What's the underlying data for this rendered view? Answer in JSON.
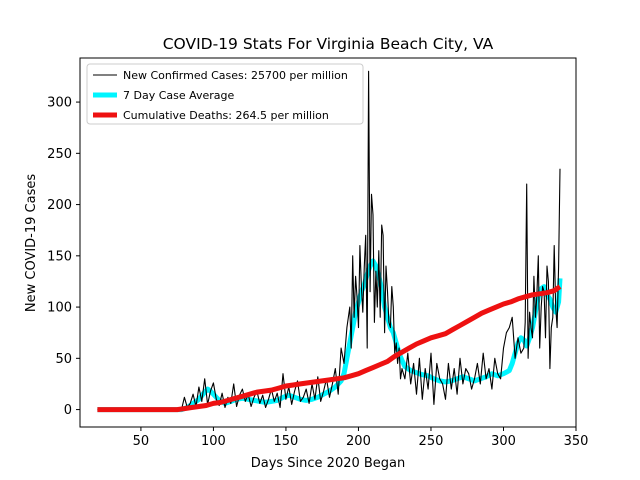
{
  "chart_data": {
    "type": "line",
    "title": "COVID-19 Stats For Virginia Beach City, VA",
    "xlabel": "Days Since 2020 Began",
    "ylabel": "New COVID-19 Cases",
    "xlim": [
      8,
      350
    ],
    "ylim": [
      -17,
      343
    ],
    "xticks": [
      50,
      100,
      150,
      200,
      250,
      300,
      350
    ],
    "yticks": [
      0,
      50,
      100,
      150,
      200,
      250,
      300
    ],
    "grid": false,
    "legend_position": "top-left",
    "series": [
      {
        "name": "New Confirmed Cases: 25700 per million",
        "color": "#000000",
        "style": "thin-line",
        "x": [
          20,
          30,
          40,
          50,
          60,
          70,
          78,
          80,
          82,
          84,
          86,
          88,
          90,
          92,
          94,
          96,
          98,
          100,
          102,
          104,
          106,
          108,
          110,
          112,
          114,
          116,
          118,
          120,
          122,
          124,
          126,
          128,
          130,
          132,
          134,
          136,
          138,
          140,
          142,
          144,
          146,
          148,
          150,
          152,
          154,
          156,
          158,
          160,
          162,
          164,
          166,
          168,
          170,
          172,
          174,
          176,
          178,
          180,
          182,
          184,
          186,
          188,
          190,
          192,
          194,
          195,
          196,
          197,
          198,
          199,
          200,
          201,
          202,
          203,
          204,
          205,
          206,
          207,
          208,
          209,
          210,
          211,
          212,
          213,
          214,
          215,
          216,
          217,
          218,
          219,
          220,
          221,
          222,
          223,
          224,
          225,
          226,
          227,
          228,
          229,
          230,
          232,
          234,
          236,
          238,
          240,
          242,
          244,
          246,
          248,
          250,
          252,
          254,
          256,
          258,
          260,
          262,
          264,
          266,
          268,
          270,
          272,
          274,
          276,
          278,
          280,
          282,
          284,
          286,
          288,
          290,
          292,
          294,
          296,
          298,
          300,
          302,
          304,
          306,
          308,
          310,
          312,
          314,
          315,
          316,
          317,
          318,
          319,
          320,
          321,
          322,
          323,
          324,
          325,
          326,
          327,
          328,
          329,
          330,
          331,
          332,
          333,
          334,
          335,
          336,
          337,
          338,
          339
        ],
        "y": [
          0,
          0,
          0,
          0,
          0,
          0,
          0,
          12,
          2,
          6,
          15,
          3,
          22,
          8,
          30,
          5,
          18,
          26,
          10,
          4,
          16,
          2,
          12,
          6,
          25,
          3,
          14,
          20,
          8,
          15,
          3,
          12,
          18,
          6,
          14,
          2,
          10,
          20,
          8,
          16,
          2,
          35,
          10,
          22,
          5,
          18,
          28,
          8,
          12,
          20,
          6,
          25,
          10,
          32,
          8,
          18,
          30,
          12,
          25,
          40,
          15,
          60,
          45,
          80,
          100,
          60,
          150,
          90,
          130,
          110,
          80,
          160,
          120,
          95,
          140,
          170,
          60,
          330,
          115,
          210,
          190,
          85,
          135,
          100,
          155,
          90,
          180,
          170,
          75,
          140,
          115,
          85,
          80,
          120,
          100,
          55,
          65,
          45,
          60,
          30,
          40,
          30,
          55,
          25,
          45,
          15,
          50,
          10,
          40,
          20,
          55,
          5,
          45,
          30,
          25,
          10,
          45,
          20,
          40,
          15,
          50,
          25,
          40,
          35,
          20,
          30,
          45,
          25,
          55,
          30,
          40,
          20,
          50,
          35,
          30,
          60,
          75,
          80,
          90,
          50,
          70,
          55,
          60,
          85,
          220,
          50,
          95,
          80,
          70,
          130,
          90,
          110,
          150,
          60,
          100,
          120,
          115,
          70,
          140,
          125,
          40,
          80,
          90,
          160,
          100,
          80,
          140,
          235
        ]
      },
      {
        "name": "7 Day Case Average",
        "color": "#00f5ff",
        "style": "thick-line",
        "x": [
          20,
          30,
          40,
          50,
          60,
          70,
          78,
          82,
          86,
          90,
          94,
          96,
          98,
          100,
          104,
          108,
          112,
          116,
          120,
          124,
          128,
          132,
          136,
          140,
          144,
          148,
          152,
          156,
          160,
          164,
          168,
          172,
          176,
          180,
          184,
          188,
          190,
          192,
          194,
          196,
          198,
          200,
          202,
          204,
          206,
          208,
          210,
          212,
          214,
          216,
          218,
          220,
          222,
          224,
          226,
          228,
          230,
          232,
          236,
          240,
          244,
          248,
          252,
          256,
          260,
          264,
          268,
          272,
          276,
          280,
          284,
          288,
          292,
          296,
          300,
          304,
          306,
          308,
          310,
          312,
          314,
          316,
          318,
          320,
          322,
          324,
          326,
          328,
          330,
          332,
          334,
          336,
          338,
          339
        ],
        "y": [
          0,
          0,
          0,
          0,
          0,
          0,
          0,
          2,
          6,
          10,
          17,
          20,
          18,
          15,
          9,
          6,
          8,
          10,
          11,
          10,
          9,
          8,
          7,
          8,
          9,
          12,
          14,
          12,
          10,
          9,
          10,
          12,
          15,
          18,
          22,
          28,
          35,
          50,
          65,
          80,
          95,
          105,
          115,
          122,
          132,
          140,
          145,
          140,
          130,
          118,
          100,
          90,
          80,
          75,
          65,
          55,
          48,
          42,
          38,
          36,
          34,
          33,
          30,
          28,
          27,
          28,
          30,
          32,
          30,
          28,
          30,
          32,
          35,
          33,
          35,
          38,
          45,
          55,
          65,
          70,
          68,
          62,
          70,
          80,
          95,
          110,
          118,
          120,
          112,
          108,
          100,
          95,
          105,
          128
        ]
      },
      {
        "name": "Cumulative Deaths: 264.5 per million",
        "color": "#ee1111",
        "style": "thick-line",
        "x": [
          20,
          30,
          40,
          50,
          60,
          70,
          75,
          80,
          85,
          90,
          95,
          100,
          105,
          110,
          115,
          120,
          125,
          130,
          135,
          140,
          145,
          150,
          155,
          160,
          165,
          170,
          175,
          180,
          185,
          190,
          195,
          200,
          205,
          210,
          215,
          220,
          225,
          230,
          235,
          240,
          245,
          250,
          255,
          260,
          265,
          270,
          275,
          280,
          285,
          290,
          295,
          300,
          305,
          310,
          315,
          320,
          325,
          330,
          335,
          339
        ],
        "y": [
          0,
          0,
          0,
          0,
          0,
          0,
          0,
          1,
          2,
          3,
          4,
          6,
          7,
          9,
          11,
          13,
          15,
          17,
          18,
          19,
          21,
          23,
          24,
          25,
          26,
          27,
          28,
          29,
          30,
          31,
          33,
          35,
          38,
          41,
          44,
          47,
          52,
          56,
          60,
          64,
          67,
          70,
          72,
          74,
          78,
          82,
          86,
          90,
          94,
          97,
          100,
          103,
          105,
          108,
          110,
          112,
          113,
          114,
          116,
          120
        ]
      }
    ]
  }
}
